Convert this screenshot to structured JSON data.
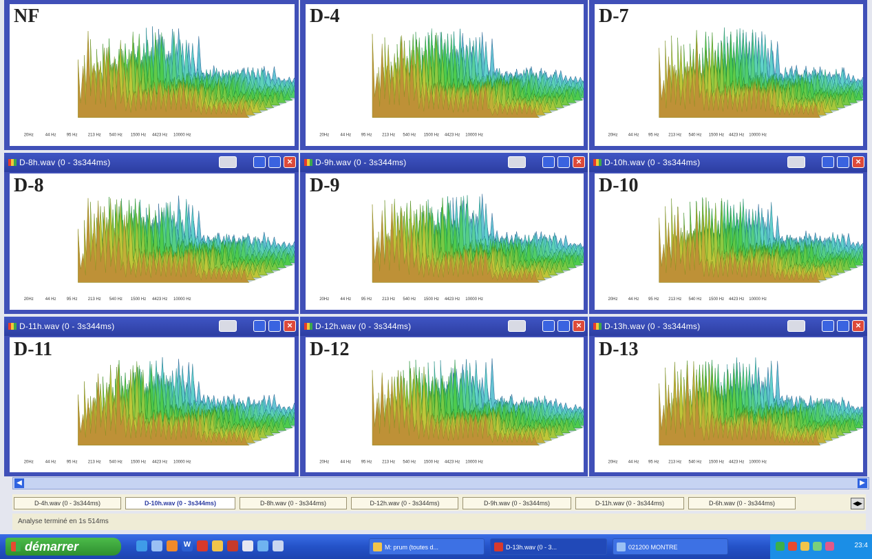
{
  "windows": [
    {
      "id": "nf",
      "label": "NF",
      "title": "",
      "top": true
    },
    {
      "id": "d4",
      "label": "D-4",
      "title": "",
      "top": true
    },
    {
      "id": "d7",
      "label": "D-7",
      "title": "",
      "top": true
    },
    {
      "id": "d8",
      "label": "D-8",
      "title": "D-8h.wav (0 - 3s344ms)"
    },
    {
      "id": "d9",
      "label": "D-9",
      "title": "D-9h.wav (0 - 3s344ms)"
    },
    {
      "id": "d10",
      "label": "D-10",
      "title": "D-10h.wav (0 - 3s344ms)"
    },
    {
      "id": "d11",
      "label": "D-11",
      "title": "D-11h.wav (0 - 3s344ms)"
    },
    {
      "id": "d12",
      "label": "D-12",
      "title": "D-12h.wav (0 - 3s344ms)"
    },
    {
      "id": "d13",
      "label": "D-13",
      "title": "D-13h.wav (0 - 3s344ms)"
    }
  ],
  "axis_labels": [
    "20Hz",
    "44 Hz",
    "95 Hz",
    "213 Hz",
    "540 Hz",
    "1500 Hz",
    "4423 Hz",
    "10000 Hz"
  ],
  "tabs": [
    {
      "label": "D-4h.wav (0 - 3s344ms)",
      "active": false
    },
    {
      "label": "D-10h.wav (0 - 3s344ms)",
      "active": true
    },
    {
      "label": "D-8h.wav (0 - 3s344ms)",
      "active": false
    },
    {
      "label": "D-12h.wav (0 - 3s344ms)",
      "active": false
    },
    {
      "label": "D-9h.wav (0 - 3s344ms)",
      "active": false
    },
    {
      "label": "D-11h.wav (0 - 3s344ms)",
      "active": false
    },
    {
      "label": "D-6h.wav (0 - 3s344ms)",
      "active": false
    }
  ],
  "status_text": "Analyse terminé en 1s 514ms",
  "taskbar": {
    "start_label": "démarrer",
    "tasks": [
      "M: prum (toutes d...",
      "D-13h.wav (0 - 3...",
      "021200 MONTRE"
    ],
    "clock": "23:4"
  }
}
